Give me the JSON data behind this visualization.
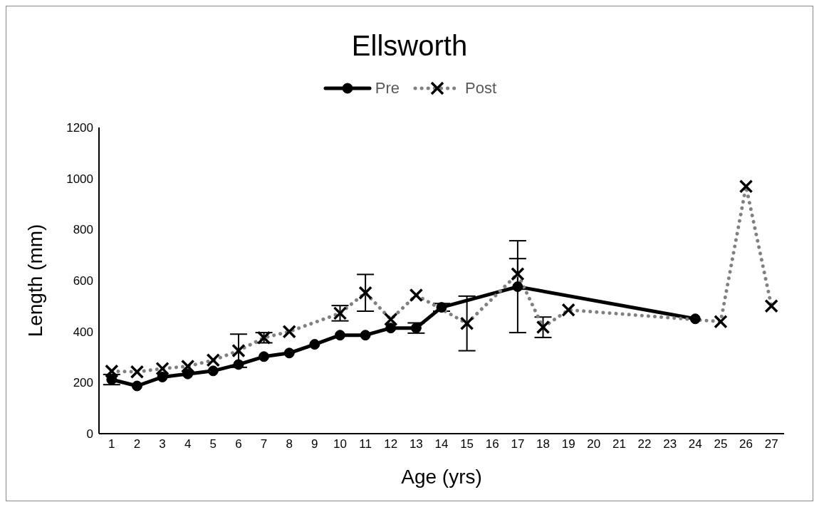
{
  "chart_data": {
    "type": "line",
    "title": "Ellsworth",
    "xlabel": "Age (yrs)",
    "ylabel": "Length (mm)",
    "x": [
      1,
      2,
      3,
      4,
      5,
      6,
      7,
      8,
      9,
      10,
      11,
      12,
      13,
      14,
      15,
      16,
      17,
      18,
      19,
      20,
      21,
      22,
      23,
      24,
      25,
      26,
      27
    ],
    "xlim": [
      0.5,
      27.5
    ],
    "xticks": [
      1,
      2,
      3,
      4,
      5,
      6,
      7,
      8,
      9,
      10,
      11,
      12,
      13,
      14,
      15,
      16,
      17,
      18,
      19,
      20,
      21,
      22,
      23,
      24,
      25,
      26,
      27
    ],
    "series": [
      {
        "name": "Pre",
        "color": "#000000",
        "marker": "circle",
        "line_style": "solid",
        "values": [
          212,
          187,
          222,
          234,
          246,
          271,
          302,
          316,
          350,
          386,
          386,
          414,
          414,
          495,
          null,
          null,
          576,
          null,
          null,
          null,
          null,
          null,
          null,
          450,
          null,
          null,
          null
        ],
        "errors": [
          20,
          null,
          null,
          null,
          null,
          null,
          null,
          null,
          null,
          null,
          null,
          null,
          20,
          15,
          null,
          null,
          180,
          null,
          null,
          null,
          null,
          null,
          null,
          null,
          null,
          null,
          null
        ]
      },
      {
        "name": "Post",
        "color": "#808080",
        "marker": "cross",
        "line_style": "dotted",
        "values": [
          245,
          242,
          255,
          264,
          288,
          325,
          376,
          400,
          null,
          472,
          552,
          448,
          543,
          null,
          432,
          null,
          626,
          417,
          485,
          null,
          null,
          null,
          null,
          null,
          439,
          969,
          500
        ],
        "errors": [
          null,
          null,
          null,
          null,
          null,
          65,
          20,
          null,
          null,
          30,
          72,
          null,
          null,
          null,
          107,
          null,
          60,
          40,
          null,
          null,
          null,
          null,
          null,
          null,
          null,
          null,
          null
        ]
      }
    ],
    "ylim": [
      0,
      1200
    ],
    "yticks": [
      0,
      200,
      400,
      600,
      800,
      1000,
      1200
    ],
    "grid": false,
    "legend": "top"
  }
}
